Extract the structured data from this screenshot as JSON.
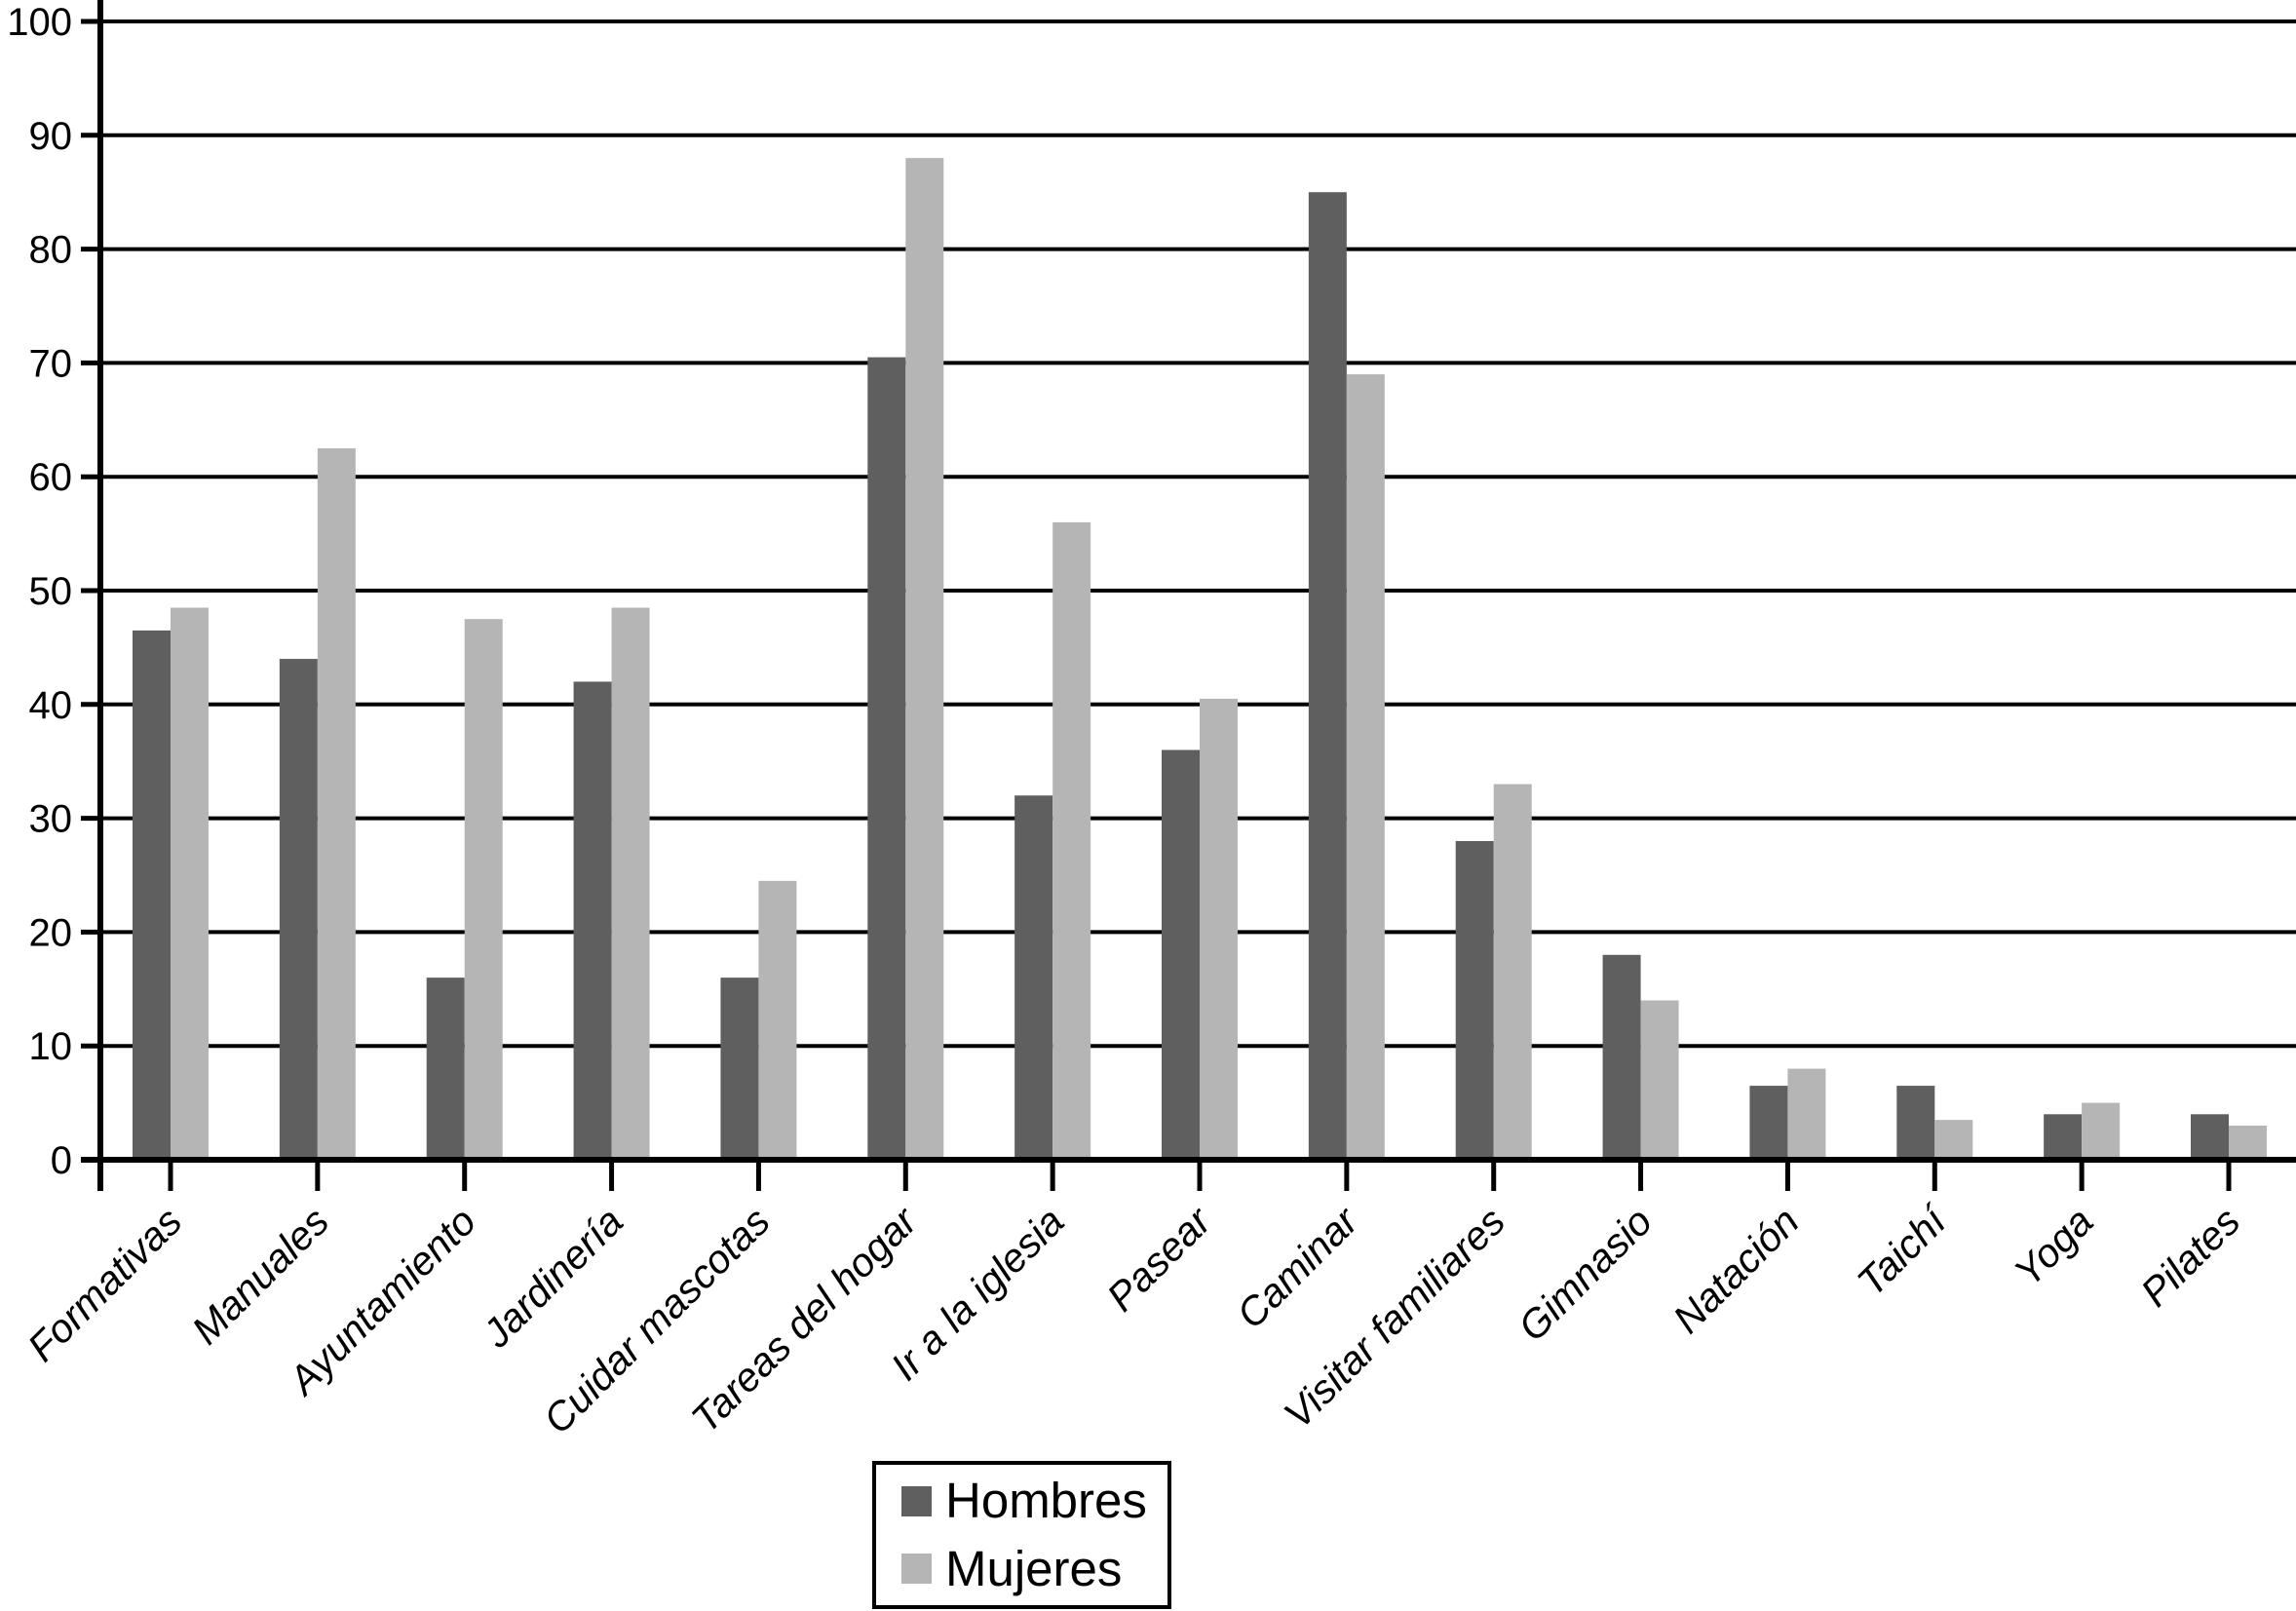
{
  "chart_data": {
    "type": "bar",
    "title": "",
    "xlabel": "",
    "ylabel": "",
    "categories": [
      "Formativas",
      "Manuales",
      "Ayuntamiento",
      "Jardinería",
      "Cuidar mascotas",
      "Tareas del hogar",
      "Ir a la iglesia",
      "Pasear",
      "Caminar",
      "Visitar familiares",
      "Gimnasio",
      "Natación",
      "Taichí",
      "Yoga",
      "Pilates"
    ],
    "series": [
      {
        "name": "Hombres",
        "color": "#5f5f5f",
        "values": [
          46.5,
          44,
          16,
          42,
          16,
          70.5,
          32,
          36,
          85,
          28,
          18,
          6.5,
          6.5,
          4,
          4
        ]
      },
      {
        "name": "Mujeres",
        "color": "#b5b5b5",
        "values": [
          48.5,
          62.5,
          47.5,
          48.5,
          24.5,
          88,
          56,
          40.5,
          69,
          33,
          14,
          8,
          3.5,
          5,
          3
        ]
      }
    ],
    "ylim": [
      0,
      100
    ],
    "ytick_interval": 10,
    "ytick_labels": [
      "0",
      "10",
      "20",
      "30",
      "40",
      "50",
      "60",
      "70",
      "80",
      "90",
      "100"
    ],
    "grid": "horizontal",
    "legend_position": "bottom-center",
    "axis_color": "#000000",
    "background_color": "#ffffff"
  }
}
